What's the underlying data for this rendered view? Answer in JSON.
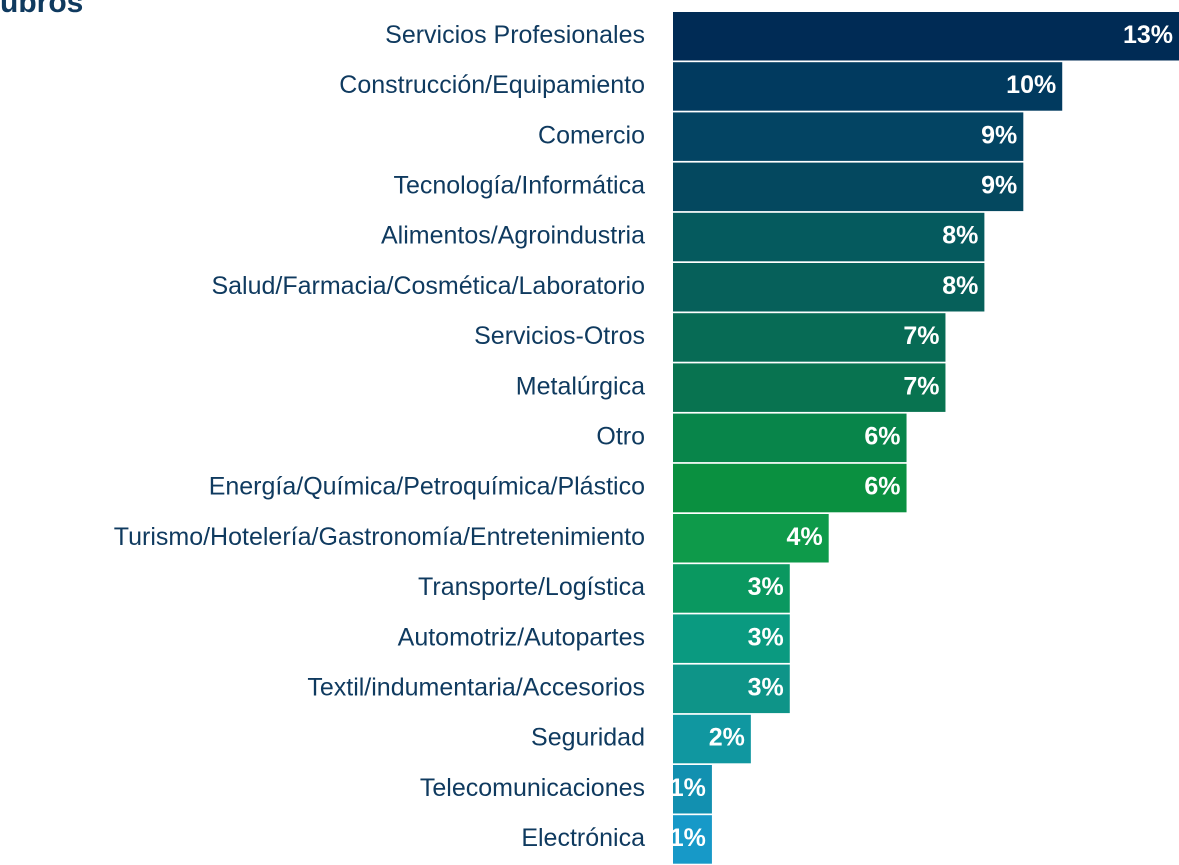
{
  "chart_data": {
    "type": "barh",
    "title": "ubros",
    "categories": [
      "Servicios Profesionales",
      "Construcción/Equipamiento",
      "Comercio",
      "Tecnología/Informática",
      "Alimentos/Agroindustria",
      "Salud/Farmacia/Cosmética/Laboratorio",
      "Servicios-Otros",
      "Metalúrgica",
      "Otro",
      "Energía/Química/Petroquímica/Plástico",
      "Turismo/Hotelería/Gastronomía/Entretenimiento",
      "Transporte/Logística",
      "Automotriz/Autopartes",
      "Textil/indumentaria/Accesorios",
      "Seguridad",
      "Telecomunicaciones",
      "Electrónica"
    ],
    "values": [
      13,
      10,
      9,
      9,
      8,
      8,
      7,
      7,
      6,
      6,
      4,
      3,
      3,
      3,
      2,
      1,
      1
    ],
    "value_labels": [
      "13%",
      "10%",
      "9%",
      "9%",
      "8%",
      "8%",
      "7%",
      "7%",
      "6%",
      "6%",
      "4%",
      "3%",
      "3%",
      "3%",
      "2%",
      "1%",
      "1%"
    ],
    "colors": [
      "#002b55",
      "#013a5f",
      "#034463",
      "#04485f",
      "#055a5e",
      "#06605a",
      "#076b55",
      "#087350",
      "#08854a",
      "#0a9040",
      "#0e9a4a",
      "#0a9860",
      "#0a9a80",
      "#0e9488",
      "#1097a0",
      "#1290b0",
      "#1799c8"
    ]
  }
}
